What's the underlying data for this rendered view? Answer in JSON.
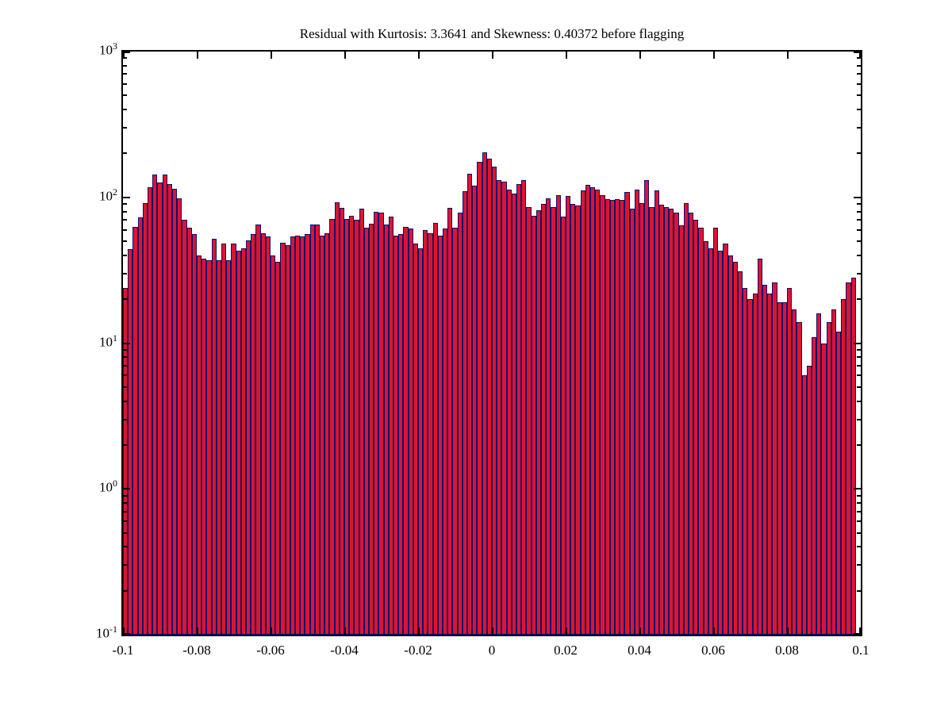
{
  "title": "Residual with Kurtosis: 3.3641 and Skewness: 0.40372 before flagging",
  "colors": {
    "bar_fill": "#dc1433",
    "bar_edge": "#10106b",
    "axis": "#000000",
    "background": "#ffffff"
  },
  "chart_data": {
    "type": "bar",
    "subtype": "histogram",
    "title": "Residual with Kurtosis: 3.3641 and Skewness: 0.40372 before flagging",
    "xlabel": "",
    "ylabel": "",
    "xlim": [
      -0.1,
      0.1
    ],
    "y_scale": "log10",
    "ylim_exponents": [
      -1,
      3
    ],
    "grid": false,
    "legend": null,
    "x_tick_labels": [
      "-0.1",
      "-0.08",
      "-0.06",
      "-0.04",
      "-0.02",
      "0",
      "0.02",
      "0.04",
      "0.06",
      "0.08",
      "0.1"
    ],
    "y_tick_base": "10",
    "y_tick_exponents_top_to_bottom": [
      "3",
      "2",
      "1",
      "0",
      "-1"
    ],
    "bin_start": -0.1,
    "bin_width": 0.001333,
    "values": [
      24,
      44,
      63,
      73,
      91,
      117,
      143,
      127,
      143,
      123,
      115,
      98,
      70,
      62,
      56,
      40,
      38,
      37,
      52,
      37,
      48,
      37,
      48,
      43,
      45,
      51,
      56,
      65,
      57,
      54,
      40,
      36,
      49,
      47,
      54,
      55,
      54,
      56,
      65,
      65,
      55,
      57,
      71,
      93,
      85,
      71,
      75,
      70,
      84,
      62,
      66,
      80,
      79,
      65,
      74,
      55,
      56,
      63,
      61,
      48,
      45,
      60,
      57,
      67,
      55,
      61,
      85,
      62,
      79,
      110,
      146,
      121,
      176,
      204,
      184,
      162,
      131,
      128,
      113,
      106,
      123,
      132,
      86,
      75,
      82,
      90,
      99,
      86,
      103,
      74,
      102,
      90,
      88,
      111,
      122,
      118,
      113,
      104,
      97,
      96,
      97,
      96,
      109,
      84,
      113,
      91,
      132,
      86,
      112,
      89,
      86,
      84,
      79,
      64,
      91,
      79,
      70,
      62,
      50,
      45,
      62,
      43,
      48,
      40,
      36,
      31,
      24,
      20,
      22,
      38,
      25,
      22,
      26,
      19,
      19,
      24,
      17,
      14,
      6,
      7,
      11,
      16,
      10,
      14,
      17,
      12,
      20,
      26,
      28
    ]
  }
}
